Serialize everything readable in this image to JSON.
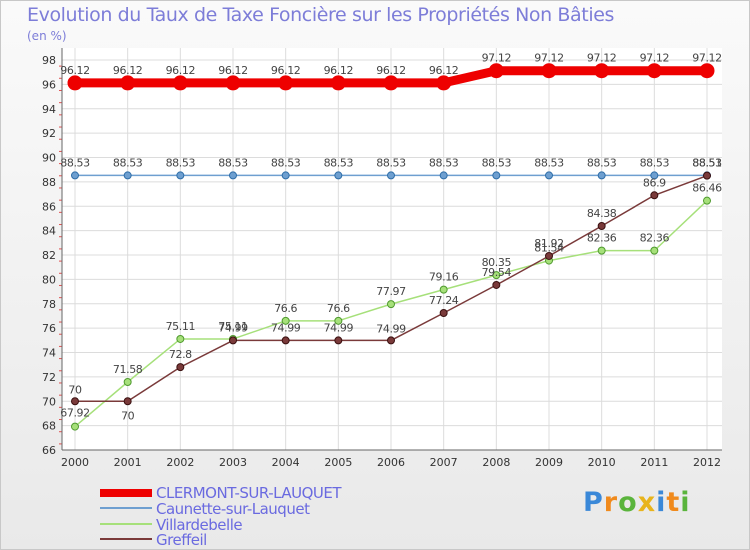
{
  "chart_data": {
    "type": "line",
    "title": "Evolution du Taux de Taxe Foncière sur les Propriétés Non Bâties",
    "ylabel": "(en %)",
    "xlabel": "",
    "ylim": [
      66,
      98
    ],
    "ytick_step": 2,
    "categories": [
      "2000",
      "2001",
      "2002",
      "2003",
      "2004",
      "2005",
      "2006",
      "2007",
      "2008",
      "2009",
      "2010",
      "2011",
      "2012"
    ],
    "series": [
      {
        "name": "CLERMONT-SUR-LAUQUET",
        "color": "#ee0000",
        "values": [
          96.12,
          96.12,
          96.12,
          96.12,
          96.12,
          96.12,
          96.12,
          96.12,
          97.12,
          97.12,
          97.12,
          97.12,
          97.12
        ],
        "labels": [
          "96.12",
          "96.12",
          "96.12",
          "96.12",
          "96.12",
          "96.12",
          "96.12",
          "96.12",
          "97.12",
          "97.12",
          "97.12",
          "97.12",
          "97.12"
        ]
      },
      {
        "name": "Caunette-sur-Lauquet",
        "color": "#6e9fd0",
        "values": [
          88.53,
          88.53,
          88.53,
          88.53,
          88.53,
          88.53,
          88.53,
          88.53,
          88.53,
          88.53,
          88.53,
          88.53,
          88.53
        ],
        "labels": [
          "88.53",
          "88.53",
          "88.53",
          "88.53",
          "88.53",
          "88.53",
          "88.53",
          "88.53",
          "88.53",
          "88.53",
          "88.53",
          "88.53",
          "88.53"
        ]
      },
      {
        "name": "Villardebelle",
        "color": "#a6e07a",
        "values": [
          67.92,
          71.58,
          75.11,
          75.11,
          76.6,
          76.6,
          77.97,
          79.16,
          80.35,
          81.54,
          82.36,
          82.36,
          86.46
        ],
        "labels": [
          "67.92",
          "71.58",
          "75.11",
          "75.11",
          "76.6",
          "76.6",
          "77.97",
          "79.16",
          "80.35",
          "81.54",
          "82.36",
          "82.36",
          "86.46"
        ]
      },
      {
        "name": "Greffeil",
        "color": "#7a3a3a",
        "values": [
          70,
          70,
          72.8,
          74.99,
          74.99,
          74.99,
          74.99,
          77.24,
          79.54,
          81.92,
          84.38,
          86.9,
          88.51
        ],
        "labels": [
          "70",
          "70",
          "72.8",
          "74.99",
          "74.99",
          "74.99",
          "74.99",
          "77.24",
          "79.54",
          "81.92",
          "84.38",
          "86.9",
          "88.51"
        ]
      }
    ]
  },
  "logo": {
    "chars": [
      "P",
      "r",
      "o",
      "x",
      "i",
      "t",
      "i"
    ],
    "colors": [
      "#3a88d8",
      "#f08a1c",
      "#5ab43c",
      "#e8b41c",
      "#3a88d8",
      "#f08a1c",
      "#5ab43c"
    ]
  }
}
